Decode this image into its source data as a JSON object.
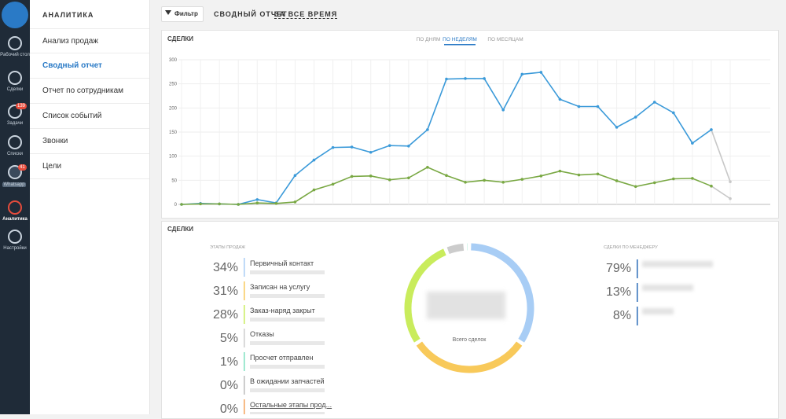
{
  "sidebar": {
    "items": [
      "Рабочий стол",
      "Сделки",
      "Задачи",
      "Списки",
      "Whatsapp",
      "Аналитика",
      "Настройки"
    ],
    "badges": [
      "139",
      "41"
    ]
  },
  "submenu": {
    "title": "АНАЛИТИКА",
    "items": [
      "Анализ продаж",
      "Сводный отчет",
      "Отчет по сотрудникам",
      "Список событий",
      "Звонки",
      "Цели"
    ],
    "active": 1
  },
  "toolbar": {
    "filter": "Фильтр",
    "title": "СВОДНЫЙ ОТЧЕТ",
    "period": "ЗА ВСЕ ВРЕМЯ"
  },
  "chart_data": [
    {
      "type": "line",
      "title": "СДЕЛКИ",
      "tabs": [
        "ПО ДНЯМ",
        "ПО НЕДЕЛЯМ",
        "ПО МЕСЯЦАМ"
      ],
      "active_tab": 1,
      "categories": [
        null,
        null,
        null,
        null,
        null,
        null,
        null,
        null,
        null,
        null,
        null,
        null,
        null,
        null,
        null,
        null,
        null,
        null,
        null,
        null,
        null,
        null,
        null,
        null,
        null,
        null,
        null,
        null,
        null,
        null
      ],
      "series": [
        {
          "color": "#3b9ad9",
          "values": [
            0,
            2,
            1,
            0,
            10,
            3,
            60,
            92,
            118,
            119,
            108,
            122,
            121,
            155,
            260,
            261,
            261,
            196,
            270,
            274,
            218,
            203,
            203,
            160,
            181,
            212,
            190,
            127,
            155,
            47
          ]
        },
        {
          "color": "#79a843",
          "values": [
            0,
            1,
            1,
            0,
            3,
            2,
            5,
            30,
            42,
            58,
            59,
            51,
            55,
            77,
            60,
            46,
            50,
            46,
            52,
            59,
            69,
            61,
            63,
            49,
            37,
            45,
            53,
            54,
            38,
            12
          ]
        }
      ],
      "last_segment_color": "#c8c8c8",
      "ylim": [
        0,
        300
      ],
      "yticks": [
        0,
        50,
        100,
        150,
        200,
        250,
        300
      ],
      "grid": true
    },
    {
      "type": "pie",
      "title": "СДЕЛКИ",
      "subtitle": "ЭТАПЫ ПРОДАЖ",
      "center_label": "Всего сделок",
      "categories": [
        "Первичный контакт",
        "Записан на услугу",
        "Заказ-наряд закрыт",
        "Отказы",
        "Просчет отправлен",
        "В ожидании запчастей",
        "Остальные этапы прод..."
      ],
      "values": [
        34,
        31,
        28,
        5,
        1,
        0,
        0
      ],
      "value_labels": [
        "34%",
        "31%",
        "28%",
        "5%",
        "1%",
        "0%",
        "0%"
      ],
      "colors": [
        "#a8cdf5",
        "#f8c95a",
        "#c9ec5c",
        "#cccccc",
        "#7de0c0",
        "#bbbbbb",
        "#f4a259"
      ]
    }
  ],
  "managers": {
    "title": "СДЕЛКИ ПО МЕНЕДЖЕРУ",
    "values": [
      79,
      13,
      8
    ],
    "value_labels": [
      "79%",
      "13%",
      "8%"
    ],
    "color": "#2b6cb8"
  }
}
